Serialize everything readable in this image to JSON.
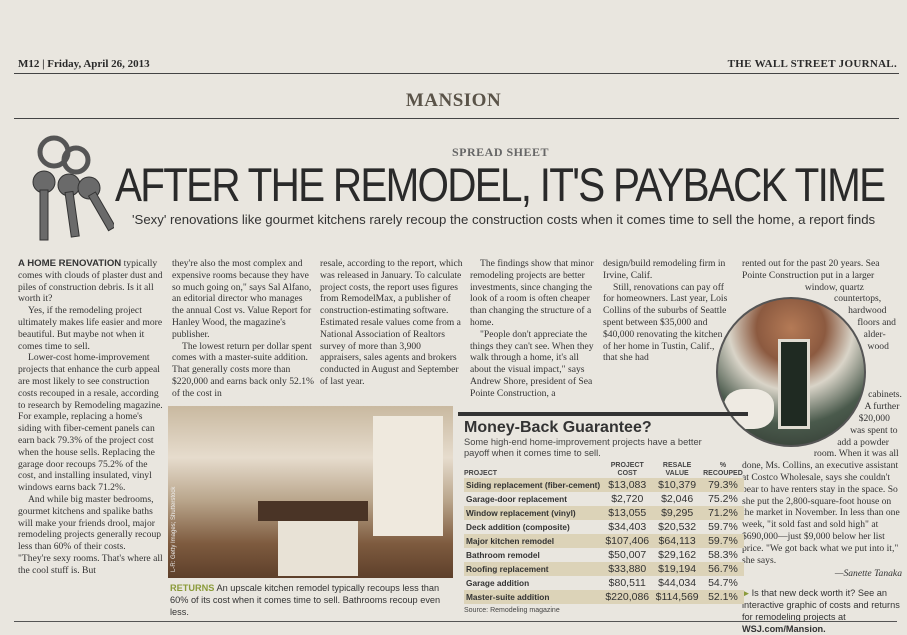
{
  "header": {
    "page": "M12 | Friday, April 26, 2013",
    "paper": "THE WALL STREET JOURNAL.",
    "section": "MANSION"
  },
  "kicker": "SPREAD SHEET",
  "headline": "AFTER THE REMODEL, IT'S PAYBACK TIME",
  "dek": "'Sexy' renovations like gourmet kitchens rarely recoup the construction costs when it comes time to sell the home, a report finds",
  "article": {
    "col1": {
      "lead": "A HOME RENOVATION",
      "p1": " typically comes with clouds of plaster dust and piles of construction debris. Is it all worth it?",
      "p2": "Yes, if the remodeling project ultimately makes life easier and more beautiful. But maybe not when it comes time to sell.",
      "p3": "Lower-cost home-improvement projects that enhance the curb appeal are most likely to see construction costs recouped in a resale, according to research by Remodeling magazine. For example, replacing a home's siding with fiber-cement panels can earn back 79.3% of the project cost when the house sells. Replacing the garage door recoups 75.2% of the cost, and installing insulated, vinyl windows earns back 71.2%.",
      "p4": "And while big master bedrooms, gourmet kitchens and spalike baths will make your friends drool, major remodeling projects generally recoup less than 60% of their costs.",
      "p5": "\"They're sexy rooms. That's where all the cool stuff is. But"
    },
    "col2": {
      "p1": "they're also the most complex and expensive rooms because they have so much going on,\" says Sal Alfano, an editorial director who manages the annual Cost vs. Value Report for Hanley Wood, the magazine's publisher.",
      "p2": "The lowest return per dollar spent comes with a master-suite addition. That generally costs more than $220,000 and earns back only 52.1% of the cost in"
    },
    "col3": {
      "p1": "resale, according to the report, which was released in January. To calculate project costs, the report uses figures from RemodelMax, a publisher of construction-estimating software. Estimated resale values come from a National Association of Realtors survey of more than 3,900 appraisers, sales agents and brokers conducted in August and September of last year."
    },
    "col4": {
      "p1": "The findings show that minor remodeling projects are better investments, since changing the look of a room is often cheaper than changing the structure of a home.",
      "p2": "\"People don't appreciate the things they can't see. When they walk through a home, it's all about the visual impact,\" says Andrew Shore, president of Sea Pointe Construction, a"
    },
    "col5": {
      "p1": "design/build remodeling firm in Irvine, Calif.",
      "p2": "Still, renovations can pay off for homeowners. Last year, Lois Collins of the suburbs of Seattle spent between $35,000 and $40,000 renovating the kitchen of her home in Tustin, Calif., that she had"
    },
    "col6": {
      "p1": "rented out for the past 20 years. Sea Pointe Construction put in a larger window, quartz countertops, hardwood floors and alder-wood cabinets. A further $20,000 was spent to add a powder room. When it was all done, Ms. Collins, an executive assistant at Costco Wholesale, says she couldn't bear to have renters stay in the space. So she put the 2,800-square-foot house on the market in November. In less than one week, \"it sold fast and sold high\" at $690,000—just $9,000 below her list price. \"We got back what we put into it,\" she says.",
      "byline": "—Sanette Tanaka"
    }
  },
  "photo": {
    "credit": "L-R: Getty Images; Shutterstock",
    "caption_lead": "RETURNS",
    "caption": " An upscale kitchen remodel typically recoups less than 60% of its cost when it comes time to sell. Bathrooms recoup even less."
  },
  "promo": {
    "arrow": "▶",
    "text": " Is that new deck worth it? See an interactive graphic of costs and returns for remodeling projects at ",
    "link": "WSJ.com/Mansion."
  },
  "table": {
    "title": "Money-Back Guarantee?",
    "subtitle": "Some high-end home-improvement projects have a better payoff when it comes time to sell.",
    "headers": [
      "PROJECT",
      "PROJECT COST",
      "RESALE VALUE",
      "% RECOUPED"
    ],
    "rows": [
      [
        "Siding replacement (fiber-cement)",
        "$13,083",
        "$10,379",
        "79.3%"
      ],
      [
        "Garage-door replacement",
        "$2,720",
        "$2,046",
        "75.2%"
      ],
      [
        "Window replacement (vinyl)",
        "$13,055",
        "$9,295",
        "71.2%"
      ],
      [
        "Deck addition (composite)",
        "$34,403",
        "$20,532",
        "59.7%"
      ],
      [
        "Major kitchen remodel",
        "$107,406",
        "$64,113",
        "59.7%"
      ],
      [
        "Bathroom remodel",
        "$50,007",
        "$29,162",
        "58.3%"
      ],
      [
        "Roofing replacement",
        "$33,880",
        "$19,194",
        "56.7%"
      ],
      [
        "Garage addition",
        "$80,511",
        "$44,034",
        "54.7%"
      ],
      [
        "Master-suite addition",
        "$220,086",
        "$114,569",
        "52.1%"
      ]
    ],
    "source": "Source: Remodeling magazine"
  },
  "colors": {
    "accent": "#8a9a3a",
    "row_shade": "#dcd3b8"
  }
}
